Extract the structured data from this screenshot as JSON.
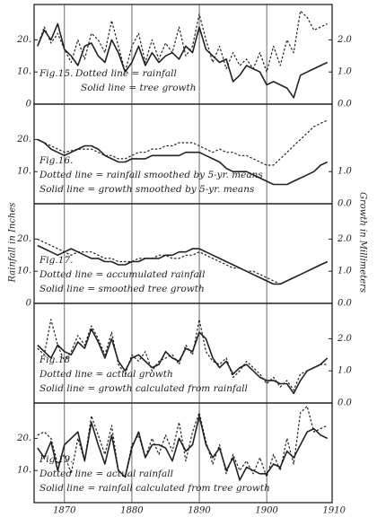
{
  "shared": {
    "xlim": [
      1865.5,
      1909.7
    ],
    "xticks": [
      1870,
      1880,
      1890,
      1900,
      1910
    ],
    "ylabel": "Rainfall in Inches",
    "y2label": "Growth in Millimeters"
  },
  "chart_data": [
    {
      "type": "line",
      "label": "Fig.15.",
      "annotations": [
        "Dotted line = rainfall",
        "Solid line = tree growth"
      ],
      "x": [
        1866,
        1867,
        1868,
        1869,
        1870,
        1871,
        1872,
        1873,
        1874,
        1875,
        1876,
        1877,
        1878,
        1879,
        1880,
        1881,
        1882,
        1883,
        1884,
        1885,
        1886,
        1887,
        1888,
        1889,
        1890,
        1891,
        1892,
        1893,
        1894,
        1895,
        1896,
        1897,
        1898,
        1899,
        1900,
        1901,
        1902,
        1903,
        1904,
        1905,
        1906,
        1907,
        1908,
        1909
      ],
      "ylim": [
        0,
        31
      ],
      "y2lim": [
        0,
        3.1
      ],
      "yticks": [
        {
          "value": 20,
          "label": "20."
        },
        {
          "value": 10,
          "label": "10."
        },
        0
      ],
      "y2ticks": [
        {
          "value": 2,
          "label": "2.0"
        },
        {
          "value": 1,
          "label": "1.0"
        },
        {
          "value": 0,
          "label": "0.0"
        }
      ],
      "series": [
        {
          "style": "dotted",
          "axis": "y",
          "color": "#222",
          "values": [
            18,
            24,
            19,
            22,
            17,
            13,
            20,
            14,
            22,
            20,
            16,
            26,
            18,
            10,
            18,
            22,
            13,
            20,
            14,
            19,
            16,
            24,
            15,
            18,
            28,
            20,
            13,
            18,
            11,
            16,
            12,
            14,
            11,
            16,
            10,
            18,
            12,
            20,
            16,
            29,
            27,
            23,
            24,
            25
          ]
        },
        {
          "style": "solid",
          "axis": "y2",
          "color": "#222",
          "values": [
            1.8,
            2.3,
            2.0,
            2.5,
            1.7,
            1.5,
            1.2,
            1.8,
            1.9,
            1.5,
            1.3,
            2.0,
            1.6,
            1.0,
            1.3,
            1.8,
            1.2,
            1.6,
            1.3,
            1.5,
            1.6,
            1.4,
            1.8,
            1.6,
            2.4,
            1.7,
            1.5,
            1.3,
            1.4,
            0.7,
            0.9,
            1.2,
            1.1,
            1.0,
            0.6,
            0.7,
            0.6,
            0.5,
            0.2,
            0.9,
            1.0,
            1.1,
            1.2,
            1.3
          ]
        }
      ]
    },
    {
      "type": "line",
      "label": "Fig.16.",
      "annotations": [
        "Dotted line = rainfall smoothed by 5-yr. means",
        "Solid line = growth smoothed by 5-yr. means"
      ],
      "x": [
        1866,
        1867,
        1868,
        1869,
        1870,
        1871,
        1872,
        1873,
        1874,
        1875,
        1876,
        1877,
        1878,
        1879,
        1880,
        1881,
        1882,
        1883,
        1884,
        1885,
        1886,
        1887,
        1888,
        1889,
        1890,
        1891,
        1892,
        1893,
        1894,
        1895,
        1896,
        1897,
        1898,
        1899,
        1900,
        1901,
        1902,
        1903,
        1904,
        1905,
        1906,
        1907,
        1908,
        1909
      ],
      "ylim": [
        0,
        31
      ],
      "y2lim": [
        0,
        3.1
      ],
      "yticks": [
        {
          "value": 20,
          "label": "20."
        },
        {
          "value": 10,
          "label": "10."
        }
      ],
      "y2ticks": [
        {
          "value": 1,
          "label": "1.0"
        },
        {
          "value": 0,
          "label": "0.0"
        }
      ],
      "series": [
        {
          "style": "dotted",
          "axis": "y",
          "color": "#222",
          "values": [
            20,
            19,
            18,
            17,
            16,
            16.5,
            17,
            17,
            17,
            16,
            15,
            15,
            14,
            14,
            15,
            16,
            16,
            17,
            17,
            18,
            18,
            19,
            19,
            19,
            18,
            17,
            16,
            17,
            16,
            16,
            15,
            15,
            14,
            13,
            12,
            12,
            14,
            16,
            18,
            20,
            22,
            24,
            25,
            26
          ]
        },
        {
          "style": "solid",
          "axis": "y2",
          "color": "#222",
          "values": [
            2.0,
            1.9,
            1.7,
            1.6,
            1.5,
            1.6,
            1.7,
            1.8,
            1.8,
            1.7,
            1.5,
            1.4,
            1.3,
            1.3,
            1.4,
            1.4,
            1.4,
            1.5,
            1.5,
            1.5,
            1.5,
            1.5,
            1.6,
            1.6,
            1.6,
            1.5,
            1.4,
            1.3,
            1.1,
            1.0,
            1.0,
            1.0,
            0.9,
            0.8,
            0.7,
            0.6,
            0.6,
            0.6,
            0.7,
            0.8,
            0.9,
            1.0,
            1.2,
            1.3
          ]
        }
      ]
    },
    {
      "type": "line",
      "label": "Fig.17.",
      "annotations": [
        "Dotted line = accumulated rainfall",
        "Solid line = smoothed tree growth"
      ],
      "x": [
        1866,
        1867,
        1868,
        1869,
        1870,
        1871,
        1872,
        1873,
        1874,
        1875,
        1876,
        1877,
        1878,
        1879,
        1880,
        1881,
        1882,
        1883,
        1884,
        1885,
        1886,
        1887,
        1888,
        1889,
        1890,
        1891,
        1892,
        1893,
        1894,
        1895,
        1896,
        1897,
        1898,
        1899,
        1900,
        1901,
        1902,
        1903,
        1904,
        1905,
        1906,
        1907,
        1908,
        1909
      ],
      "ylim": [
        0,
        31
      ],
      "y2lim": [
        0,
        3.1
      ],
      "yticks": [
        {
          "value": 20,
          "label": "20."
        },
        {
          "value": 10,
          "label": "10."
        },
        0
      ],
      "y2ticks": [
        {
          "value": 2,
          "label": "2.0"
        },
        {
          "value": 1,
          "label": "1.0"
        },
        {
          "value": 0,
          "label": "0.0"
        }
      ],
      "series": [
        {
          "style": "dotted",
          "axis": "y",
          "color": "#222",
          "values": [
            20,
            19,
            18,
            17,
            16,
            15,
            16,
            16,
            16,
            15,
            14,
            14,
            13,
            13,
            13,
            14,
            14,
            14,
            15,
            15,
            14,
            14,
            15,
            15,
            16,
            15,
            14,
            13,
            12,
            11,
            11,
            10,
            10,
            9,
            8,
            7,
            6,
            7,
            8,
            9,
            10,
            11,
            12,
            13
          ]
        },
        {
          "style": "solid",
          "axis": "y2",
          "color": "#222",
          "values": [
            1.8,
            1.7,
            1.6,
            1.5,
            1.6,
            1.7,
            1.6,
            1.5,
            1.4,
            1.4,
            1.3,
            1.3,
            1.2,
            1.2,
            1.3,
            1.3,
            1.4,
            1.4,
            1.4,
            1.5,
            1.5,
            1.6,
            1.6,
            1.7,
            1.7,
            1.6,
            1.5,
            1.4,
            1.3,
            1.2,
            1.1,
            1.0,
            0.9,
            0.8,
            0.7,
            0.6,
            0.6,
            0.7,
            0.8,
            0.9,
            1.0,
            1.1,
            1.2,
            1.3
          ]
        }
      ]
    },
    {
      "type": "line",
      "label": "Fig.18",
      "annotations": [
        "Dotted line = actual growth",
        "Solid line = growth calculated from rainfall"
      ],
      "x": [
        1866,
        1867,
        1868,
        1869,
        1870,
        1871,
        1872,
        1873,
        1874,
        1875,
        1876,
        1877,
        1878,
        1879,
        1880,
        1881,
        1882,
        1883,
        1884,
        1885,
        1886,
        1887,
        1888,
        1889,
        1890,
        1891,
        1892,
        1893,
        1894,
        1895,
        1896,
        1897,
        1898,
        1899,
        1900,
        1901,
        1902,
        1903,
        1904,
        1905,
        1906,
        1907,
        1908,
        1909
      ],
      "ylim": [
        0,
        31
      ],
      "y2lim": [
        0,
        3.1
      ],
      "yticks": [],
      "y2ticks": [
        {
          "value": 2,
          "label": "2.0"
        },
        {
          "value": 1,
          "label": "1.0"
        },
        {
          "value": 0,
          "label": "0.0"
        }
      ],
      "series": [
        {
          "style": "dotted",
          "axis": "y2",
          "color": "#222",
          "values": [
            1.7,
            1.5,
            2.6,
            1.8,
            1.3,
            1.6,
            2.1,
            1.8,
            2.4,
            2.0,
            1.5,
            2.2,
            1.2,
            0.9,
            1.5,
            1.3,
            1.6,
            1.0,
            1.3,
            1.4,
            1.5,
            1.2,
            1.8,
            1.5,
            2.6,
            1.6,
            1.3,
            1.2,
            1.4,
            0.8,
            1.0,
            1.3,
            1.1,
            0.9,
            0.6,
            0.8,
            0.5,
            0.7,
            0.4,
            0.9,
            1.0,
            1.1,
            1.2,
            1.2
          ]
        },
        {
          "style": "solid",
          "axis": "y2",
          "color": "#222",
          "values": [
            1.8,
            1.6,
            1.4,
            1.8,
            1.6,
            1.5,
            1.9,
            1.7,
            2.3,
            1.9,
            1.4,
            2.0,
            1.3,
            1.0,
            1.4,
            1.5,
            1.3,
            1.1,
            1.2,
            1.6,
            1.4,
            1.3,
            1.7,
            1.6,
            2.2,
            2.0,
            1.4,
            1.1,
            1.3,
            0.9,
            1.1,
            1.2,
            1.0,
            0.8,
            0.7,
            0.7,
            0.6,
            0.6,
            0.3,
            0.7,
            1.0,
            1.1,
            1.2,
            1.4
          ]
        }
      ]
    },
    {
      "type": "line",
      "label": "Fig.19.",
      "annotations": [
        "Dotted line = actual rainfall",
        "Solid line = rainfall calculated from tree growth"
      ],
      "x": [
        1866,
        1867,
        1868,
        1869,
        1870,
        1871,
        1872,
        1873,
        1874,
        1875,
        1876,
        1877,
        1878,
        1879,
        1880,
        1881,
        1882,
        1883,
        1884,
        1885,
        1886,
        1887,
        1888,
        1889,
        1890,
        1891,
        1892,
        1893,
        1894,
        1895,
        1896,
        1897,
        1898,
        1899,
        1900,
        1901,
        1902,
        1903,
        1904,
        1905,
        1906,
        1907,
        1908,
        1909
      ],
      "ylim": [
        0,
        31
      ],
      "y2lim": [
        0,
        3.1
      ],
      "yticks": [
        {
          "value": 20,
          "label": "20."
        },
        {
          "value": 10,
          "label": "10."
        }
      ],
      "y2ticks": [],
      "series": [
        {
          "style": "dotted",
          "axis": "y",
          "color": "#222",
          "values": [
            21,
            22,
            20,
            12,
            15,
            9,
            20,
            13,
            27,
            21,
            15,
            24,
            10,
            8,
            18,
            21,
            14,
            20,
            15,
            21,
            16,
            25,
            13,
            22,
            28,
            19,
            12,
            18,
            9,
            15,
            10,
            13,
            9,
            14,
            8,
            15,
            10,
            20,
            12,
            28,
            30,
            22,
            23,
            24
          ]
        },
        {
          "style": "solid",
          "axis": "y",
          "color": "#222",
          "values": [
            17,
            14,
            19,
            10,
            18,
            20,
            22,
            13,
            25,
            18,
            12,
            21,
            10,
            8,
            17,
            22,
            14,
            18,
            18,
            17,
            13,
            20,
            16,
            18,
            27,
            18,
            14,
            17,
            10,
            14,
            7,
            11,
            10,
            9,
            9,
            12,
            11,
            16,
            14,
            18,
            22,
            23,
            21,
            20
          ]
        }
      ]
    }
  ]
}
